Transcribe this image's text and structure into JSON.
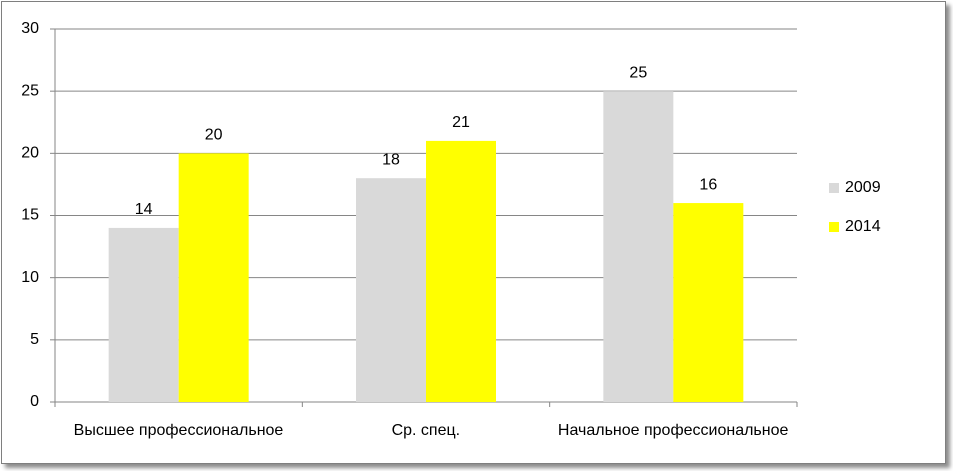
{
  "chart_data": {
    "type": "bar",
    "categories": [
      "Высшее профессиональное",
      "Ср. спец.",
      "Начальное профессиональное"
    ],
    "series": [
      {
        "name": "2009",
        "color": "#d9d9d9",
        "values": [
          14,
          18,
          25
        ]
      },
      {
        "name": "2014",
        "color": "#ffff00",
        "values": [
          20,
          21,
          16
        ]
      }
    ],
    "ylim": [
      0,
      30
    ],
    "yticks": [
      0,
      5,
      10,
      15,
      20,
      25,
      30
    ],
    "grid": true,
    "legend": "right"
  }
}
